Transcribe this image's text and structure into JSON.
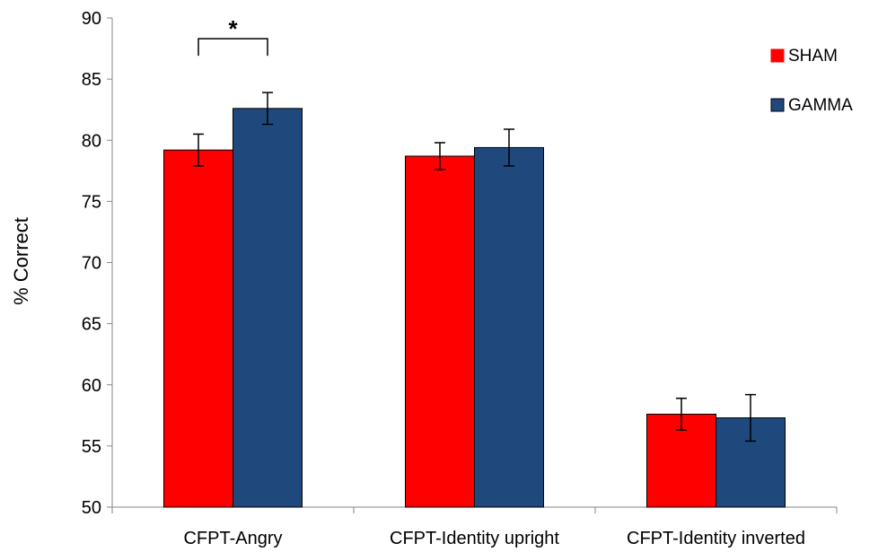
{
  "chart_data": {
    "type": "bar",
    "ylabel": "% Correct",
    "ylim": [
      50,
      90
    ],
    "yticks": [
      50,
      55,
      60,
      65,
      70,
      75,
      80,
      85,
      90
    ],
    "categories": [
      "CFPT-Angry",
      "CFPT-Identity upright",
      "CFPT-Identity inverted"
    ],
    "series": [
      {
        "name": "SHAM",
        "color": "#ff0000",
        "values": [
          79.2,
          78.7,
          57.6
        ],
        "errors": [
          1.3,
          1.1,
          1.3
        ]
      },
      {
        "name": "GAMMA",
        "color": "#1f497d",
        "values": [
          82.6,
          79.4,
          57.3
        ],
        "errors": [
          1.3,
          1.5,
          1.9
        ]
      }
    ],
    "legend_position": "top-right",
    "grid": false,
    "annotations": [
      {
        "text": "*",
        "category": "CFPT-Angry",
        "type": "significance-bracket",
        "level": 88.3
      }
    ]
  }
}
